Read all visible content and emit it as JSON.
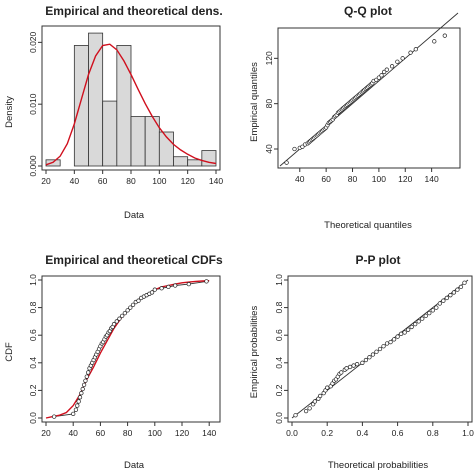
{
  "chart_data": [
    {
      "id": "density",
      "type": "bar",
      "title": "Empirical and theoretical dens.",
      "xlabel": "Data",
      "ylabel": "Density",
      "xlim": [
        20,
        140
      ],
      "ylim": [
        0,
        0.022
      ],
      "xticks": [
        20,
        40,
        60,
        80,
        100,
        120,
        140
      ],
      "yticks": [
        0.0,
        0.01,
        0.02
      ],
      "ytick_labels": [
        "0.000",
        "0.010",
        "0.020"
      ],
      "bins": [
        {
          "x0": 20,
          "x1": 30,
          "density": 0.001
        },
        {
          "x0": 30,
          "x1": 40,
          "density": 0.0
        },
        {
          "x0": 40,
          "x1": 50,
          "density": 0.0195
        },
        {
          "x0": 50,
          "x1": 60,
          "density": 0.0215
        },
        {
          "x0": 60,
          "x1": 70,
          "density": 0.0105
        },
        {
          "x0": 70,
          "x1": 80,
          "density": 0.0195
        },
        {
          "x0": 80,
          "x1": 90,
          "density": 0.008
        },
        {
          "x0": 90,
          "x1": 100,
          "density": 0.008
        },
        {
          "x0": 100,
          "x1": 110,
          "density": 0.0055
        },
        {
          "x0": 110,
          "x1": 120,
          "density": 0.0015
        },
        {
          "x0": 120,
          "x1": 130,
          "density": 0.001
        },
        {
          "x0": 130,
          "x1": 140,
          "density": 0.0025
        }
      ],
      "curve_x": [
        20,
        25,
        30,
        35,
        40,
        45,
        50,
        55,
        60,
        65,
        70,
        75,
        80,
        85,
        90,
        95,
        100,
        105,
        110,
        115,
        120,
        125,
        130,
        135,
        140
      ],
      "curve_y": [
        0.0002,
        0.0006,
        0.0016,
        0.0036,
        0.0068,
        0.0108,
        0.0148,
        0.0178,
        0.0195,
        0.0197,
        0.0188,
        0.017,
        0.0148,
        0.0124,
        0.0101,
        0.008,
        0.0062,
        0.0047,
        0.0035,
        0.0026,
        0.0019,
        0.0013,
        0.0009,
        0.0006,
        0.0004
      ],
      "curve_color": "#d0101e",
      "bar_color": "#d9d9d9"
    },
    {
      "id": "qq",
      "type": "scatter",
      "title": "Q-Q plot",
      "xlabel": "Theoretical quantiles",
      "ylabel": "Empirical quantiles",
      "xlim": [
        25,
        160
      ],
      "ylim": [
        25,
        145
      ],
      "xticks": [
        40,
        60,
        80,
        100,
        120,
        140
      ],
      "yticks": [
        40,
        80,
        120
      ],
      "x": [
        30,
        36,
        40,
        42,
        44,
        46,
        47,
        48,
        49,
        50,
        51,
        52,
        53,
        54,
        55,
        56,
        57,
        58,
        59,
        60,
        61,
        62,
        63,
        64,
        65,
        66,
        67,
        68,
        69,
        70,
        71,
        72,
        73,
        74,
        75,
        76,
        77,
        78,
        79,
        80,
        81,
        82,
        83,
        84,
        85,
        86,
        87,
        88,
        89,
        90,
        91,
        92,
        93,
        94,
        95,
        96,
        98,
        100,
        102,
        104,
        106,
        110,
        114,
        118,
        124,
        128,
        142,
        150
      ],
      "y": [
        28,
        40,
        41,
        42,
        44,
        45,
        46,
        47,
        48,
        49,
        50,
        51,
        52,
        53,
        54,
        55,
        56,
        57,
        58,
        59,
        61,
        63,
        64,
        65,
        66,
        68,
        69,
        70,
        72,
        73,
        74,
        75,
        76,
        77,
        78,
        79,
        80,
        81,
        82,
        83,
        84,
        85,
        86,
        87,
        88,
        89,
        90,
        91,
        92,
        93,
        94,
        95,
        96,
        97,
        98,
        100,
        101,
        103,
        105,
        108,
        110,
        113,
        117,
        120,
        125,
        128,
        135,
        140
      ],
      "ref_line": [
        [
          25,
          25
        ],
        [
          160,
          160
        ]
      ]
    },
    {
      "id": "cdf",
      "type": "line",
      "title": "Empirical and theoretical CDFs",
      "xlabel": "Data",
      "ylabel": "CDF",
      "xlim": [
        20,
        145
      ],
      "ylim": [
        0,
        1.0
      ],
      "xticks": [
        20,
        40,
        60,
        80,
        100,
        120,
        140
      ],
      "yticks": [
        0.0,
        0.2,
        0.4,
        0.6,
        0.8,
        1.0
      ],
      "ytick_labels": [
        "0.0",
        "0.2",
        "0.4",
        "0.6",
        "0.8",
        "1.0"
      ],
      "x": [
        26,
        40,
        42,
        43,
        44,
        45,
        46,
        47,
        48,
        49,
        50,
        51,
        52,
        53,
        54,
        55,
        56,
        57,
        58,
        59,
        60,
        61,
        62,
        63,
        64,
        65,
        66,
        67,
        68,
        69,
        70,
        72,
        74,
        76,
        78,
        80,
        82,
        84,
        86,
        88,
        90,
        92,
        94,
        96,
        98,
        100,
        105,
        110,
        115,
        125,
        138
      ],
      "y": [
        0.01,
        0.03,
        0.06,
        0.09,
        0.12,
        0.15,
        0.18,
        0.21,
        0.24,
        0.27,
        0.3,
        0.33,
        0.36,
        0.38,
        0.4,
        0.42,
        0.44,
        0.46,
        0.48,
        0.5,
        0.52,
        0.54,
        0.55,
        0.57,
        0.59,
        0.6,
        0.62,
        0.63,
        0.65,
        0.66,
        0.68,
        0.7,
        0.72,
        0.74,
        0.76,
        0.78,
        0.8,
        0.82,
        0.84,
        0.85,
        0.87,
        0.88,
        0.89,
        0.9,
        0.91,
        0.93,
        0.94,
        0.95,
        0.96,
        0.97,
        0.99
      ],
      "curve_x": [
        20,
        25,
        30,
        35,
        40,
        45,
        50,
        55,
        60,
        65,
        70,
        75,
        80,
        85,
        90,
        95,
        100,
        105,
        110,
        115,
        120,
        125,
        130,
        135,
        140
      ],
      "curve_y": [
        0.0,
        0.01,
        0.02,
        0.04,
        0.09,
        0.17,
        0.28,
        0.37,
        0.47,
        0.56,
        0.65,
        0.72,
        0.78,
        0.83,
        0.87,
        0.9,
        0.93,
        0.95,
        0.96,
        0.97,
        0.98,
        0.985,
        0.99,
        0.993,
        0.995
      ],
      "curve_color": "#d0101e"
    },
    {
      "id": "pp",
      "type": "scatter",
      "title": "P-P plot",
      "xlabel": "Theoretical probabilities",
      "ylabel": "Empirical probabilities",
      "xlim": [
        0,
        1
      ],
      "ylim": [
        0,
        1
      ],
      "xticks": [
        0.0,
        0.2,
        0.4,
        0.6,
        0.8,
        1.0
      ],
      "yticks": [
        0.0,
        0.2,
        0.4,
        0.6,
        0.8,
        1.0
      ],
      "ytick_labels": [
        "0.0",
        "0.2",
        "0.4",
        "0.6",
        "0.8",
        "1.0"
      ],
      "x": [
        0.02,
        0.08,
        0.1,
        0.12,
        0.13,
        0.15,
        0.16,
        0.18,
        0.19,
        0.2,
        0.22,
        0.23,
        0.24,
        0.25,
        0.26,
        0.27,
        0.28,
        0.3,
        0.31,
        0.33,
        0.35,
        0.37,
        0.4,
        0.42,
        0.44,
        0.46,
        0.48,
        0.5,
        0.52,
        0.54,
        0.56,
        0.58,
        0.6,
        0.62,
        0.64,
        0.66,
        0.68,
        0.7,
        0.72,
        0.74,
        0.76,
        0.78,
        0.8,
        0.82,
        0.84,
        0.86,
        0.88,
        0.9,
        0.92,
        0.94,
        0.96,
        0.98
      ],
      "y": [
        0.02,
        0.05,
        0.07,
        0.1,
        0.12,
        0.14,
        0.16,
        0.18,
        0.2,
        0.22,
        0.23,
        0.25,
        0.27,
        0.28,
        0.3,
        0.32,
        0.33,
        0.35,
        0.36,
        0.37,
        0.38,
        0.39,
        0.4,
        0.42,
        0.44,
        0.46,
        0.48,
        0.5,
        0.52,
        0.54,
        0.55,
        0.57,
        0.59,
        0.61,
        0.62,
        0.64,
        0.66,
        0.68,
        0.7,
        0.72,
        0.74,
        0.76,
        0.78,
        0.8,
        0.83,
        0.85,
        0.87,
        0.89,
        0.91,
        0.93,
        0.95,
        0.98
      ],
      "ref_line": [
        [
          0,
          0
        ],
        [
          1,
          1
        ]
      ]
    }
  ]
}
